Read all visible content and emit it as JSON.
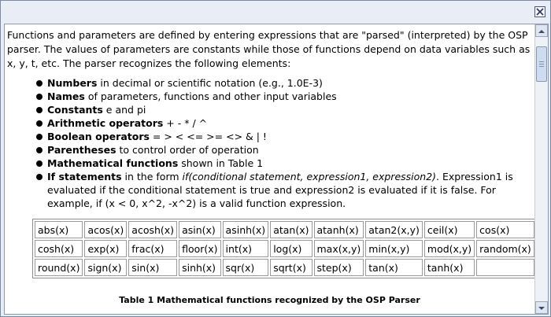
{
  "help": {
    "intro": "Functions and parameters are defined by entering expressions that are \"parsed\" (interpreted) by the OSP parser. The values of parameters are constants while those of functions depend on data variables such as x, y, t, etc. The parser recognizes the following elements:",
    "items": [
      {
        "term": "Numbers",
        "desc": " in decimal or scientific notation (e.g., 1.0E-3)"
      },
      {
        "term": "Names",
        "desc": " of parameters, functions and other input variables"
      },
      {
        "term": "Constants",
        "desc": " e and pi"
      },
      {
        "term": "Arithmetic operators",
        "desc": " + - * / ^"
      },
      {
        "term": "Boolean operators",
        "desc": " = > < <= >= <> & | !"
      },
      {
        "term": "Parentheses",
        "desc": " to control order of operation"
      },
      {
        "term": "Mathematical functions",
        "desc": " shown in Table 1"
      }
    ],
    "if_item": {
      "term": "If statements",
      "pre": " in the form ",
      "form": "if(conditional statement, expression1, expression2)",
      "post": ". Expression1 is evaluated if the conditional statement is true and expression2 is evaluated if it is false. For example, if (x < 0, x^2, -x^2) is a valid function expression."
    },
    "functions_table": [
      [
        "abs(x)",
        "acos(x)",
        "acosh(x)",
        "asin(x)",
        "asinh(x)",
        "atan(x)",
        "atanh(x)",
        "atan2(x,y)",
        "ceil(x)",
        "cos(x)"
      ],
      [
        "cosh(x)",
        "exp(x)",
        "frac(x)",
        "floor(x)",
        "int(x)",
        "log(x)",
        "max(x,y)",
        "min(x,y)",
        "mod(x,y)",
        "random(x)"
      ],
      [
        "round(x)",
        "sign(x)",
        "sin(x)",
        "sinh(x)",
        "sqr(x)",
        "sqrt(x)",
        "step(x)",
        "tan(x)",
        "tanh(x)",
        ""
      ]
    ],
    "caption": "Table 1 Mathematical functions recognized by the OSP Parser"
  },
  "icons": {
    "close": "close-icon",
    "scroll_up": "arrow-up-icon",
    "scroll_down": "arrow-down-icon"
  }
}
